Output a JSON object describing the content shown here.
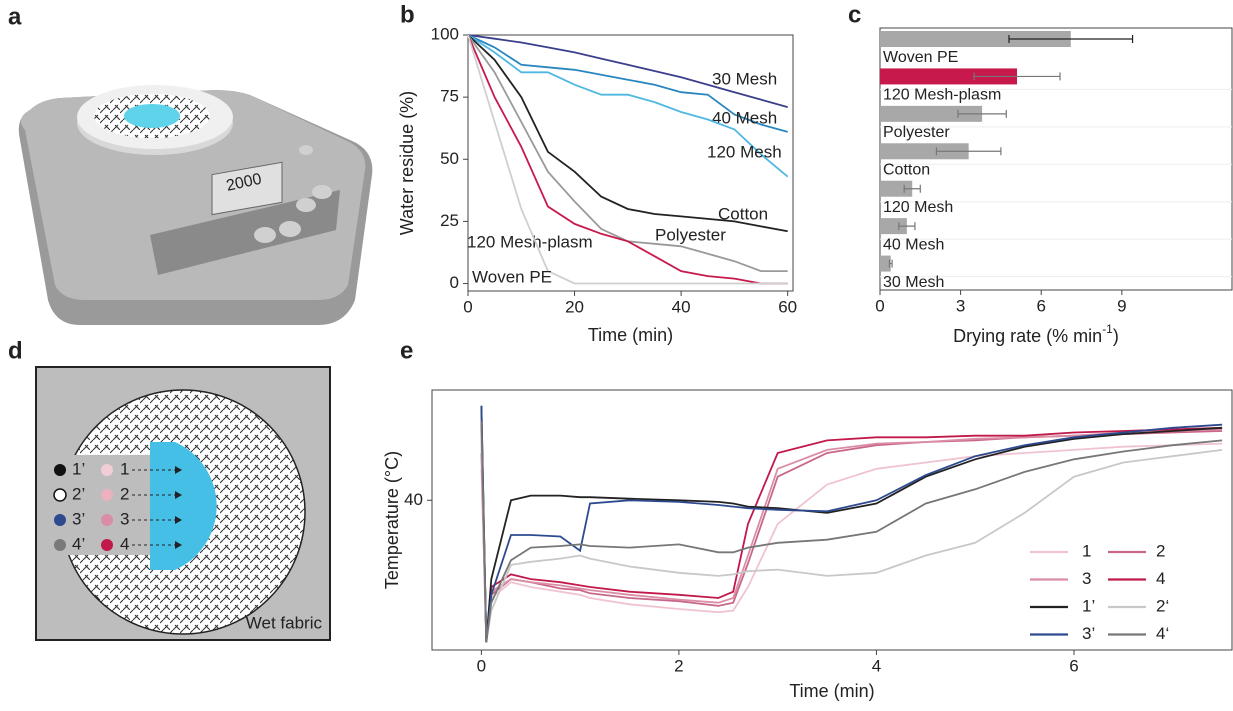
{
  "panel_labels": [
    "a",
    "b",
    "c",
    "d",
    "e"
  ],
  "scale_display": "2000",
  "diagram": {
    "labels_left": [
      "1’",
      "2’",
      "3’",
      "4’"
    ],
    "labels_right": [
      "1",
      "2",
      "3",
      "4"
    ],
    "note": "Wet fabric"
  },
  "chart_data": [
    {
      "type": "line",
      "xlabel": "Time (min)",
      "ylabel": "Water residue (%)",
      "x": [
        0,
        5,
        10,
        15,
        20,
        25,
        30,
        35,
        40,
        45,
        50,
        55,
        60
      ],
      "xlim": [
        0,
        61
      ],
      "ylim": [
        -3,
        100
      ],
      "xticks": [
        0,
        20,
        40,
        60
      ],
      "yticks": [
        0,
        25,
        50,
        75,
        100
      ],
      "series": [
        {
          "name": "30 Mesh",
          "color": "#3b3f8c",
          "values": [
            100,
            98.5,
            97,
            95,
            93,
            90.5,
            88,
            85.5,
            83,
            80,
            77,
            74,
            71
          ]
        },
        {
          "name": "40 Mesh",
          "color": "#2a86be",
          "values": [
            100,
            95,
            88,
            87,
            86,
            84,
            82,
            80,
            77,
            76,
            68,
            64,
            61
          ]
        },
        {
          "name": "120 Mesh",
          "color": "#4fb8e2",
          "values": [
            100,
            93,
            85,
            85,
            80,
            76,
            76,
            73,
            69,
            66,
            62,
            52,
            43
          ]
        },
        {
          "name": "Cotton",
          "color": "#222222",
          "values": [
            100,
            90,
            75,
            53,
            45,
            35,
            30,
            28,
            27,
            26,
            25,
            23,
            21
          ]
        },
        {
          "name": "Polyester",
          "color": "#9a9a9a",
          "values": [
            100,
            85,
            65,
            45,
            33,
            22,
            17,
            16,
            15,
            12,
            9,
            5,
            5
          ]
        },
        {
          "name": "120 Mesh-plasm",
          "color": "#c8194c",
          "values": [
            100,
            75,
            55,
            31,
            24,
            20,
            17,
            11,
            5,
            3,
            2,
            0,
            0
          ]
        },
        {
          "name": "Woven PE",
          "color": "#cfcfcf",
          "values": [
            100,
            65,
            30,
            5,
            0,
            0,
            0,
            0,
            0,
            0,
            0,
            0,
            0
          ]
        }
      ]
    },
    {
      "type": "hbar",
      "xlabel": [
        "Drying rate (% min",
        "-1",
        ")"
      ],
      "categories": [
        "Woven PE",
        "120 Mesh-plasm",
        "Polyester",
        "Cotton",
        "120 Mesh",
        "40 Mesh",
        "30 Mesh"
      ],
      "values": [
        7.1,
        5.1,
        3.8,
        3.3,
        1.2,
        1.0,
        0.4
      ],
      "errors": [
        2.3,
        1.6,
        0.9,
        1.2,
        0.3,
        0.3,
        0.05
      ],
      "colors": [
        "#a8a8a8",
        "#c8194c",
        "#a8a8a8",
        "#a8a8a8",
        "#a8a8a8",
        "#a8a8a8",
        "#a8a8a8"
      ],
      "xlim": [
        0,
        13.1
      ],
      "xticks": [
        0,
        3,
        6,
        9
      ]
    },
    {
      "type": "line",
      "xlabel": "Time (min)",
      "ylabel": "Temperature (°C)",
      "legend": "lower right",
      "x": [
        0,
        0.05,
        0.1,
        0.3,
        0.5,
        0.8,
        1.0,
        1.1,
        1.5,
        2.0,
        2.4,
        2.55,
        2.7,
        3.0,
        3.5,
        4.0,
        4.5,
        5.0,
        5.5,
        6.0,
        6.5,
        7.0,
        7.5
      ],
      "xlim": [
        -0.5,
        7.6
      ],
      "ylim": [
        30.5,
        47
      ],
      "xticks": [
        0,
        2,
        4,
        6
      ],
      "yticks": [
        40
      ],
      "series": [
        {
          "name": "1",
          "color": "#f0c4cf",
          "values": [
            42,
            31,
            33.8,
            34.8,
            34.5,
            34.2,
            34.0,
            33.8,
            33.4,
            33.1,
            32.9,
            33.0,
            34.5,
            38.5,
            41.0,
            42.0,
            42.4,
            42.8,
            43.0,
            43.2,
            43.4,
            43.5,
            43.6
          ]
        },
        {
          "name": "2",
          "color": "#c9678a",
          "values": [
            43,
            31,
            34.0,
            35.0,
            34.8,
            34.4,
            34.3,
            34.1,
            33.8,
            33.6,
            33.3,
            33.5,
            36,
            41.5,
            43.0,
            43.5,
            43.7,
            43.8,
            44.0,
            44.1,
            44.2,
            44.3,
            44.4
          ]
        },
        {
          "name": "3",
          "color": "#d98ea5",
          "values": [
            44,
            31,
            34.2,
            35.0,
            34.8,
            34.6,
            34.4,
            34.3,
            34.0,
            33.7,
            33.5,
            33.8,
            36.5,
            42.0,
            43.2,
            43.6,
            43.7,
            43.9,
            44.0,
            44.1,
            44.3,
            44.4,
            44.5
          ]
        },
        {
          "name": "4",
          "color": "#c0194a",
          "values": [
            45,
            31,
            34.5,
            35.3,
            35.0,
            34.8,
            34.6,
            34.5,
            34.2,
            34.0,
            33.8,
            34.2,
            38.5,
            43.0,
            43.8,
            44.0,
            44.0,
            44.1,
            44.1,
            44.3,
            44.4,
            44.5,
            44.6
          ]
        },
        {
          "name": "1’",
          "color": "#222222",
          "values": [
            46,
            31,
            35,
            40.0,
            40.3,
            40.3,
            40.2,
            40.2,
            40.1,
            40.0,
            39.9,
            39.8,
            39.6,
            39.5,
            39.2,
            39.8,
            41.5,
            42.6,
            43.4,
            43.9,
            44.2,
            44.4,
            44.6
          ]
        },
        {
          "name": "2‘",
          "color": "#c8c8c8",
          "values": [
            44,
            31,
            33,
            35.9,
            36.1,
            36.3,
            36.5,
            36.3,
            35.8,
            35.4,
            35.2,
            35.3,
            35.5,
            35.6,
            35.2,
            35.4,
            36.5,
            37.3,
            39.2,
            41.5,
            42.4,
            42.8,
            43.2
          ]
        },
        {
          "name": "3’",
          "color": "#2e4a8f",
          "values": [
            46,
            31,
            34,
            37.8,
            37.8,
            37.7,
            36.8,
            39.8,
            40.0,
            39.9,
            39.7,
            39.6,
            39.5,
            39.4,
            39.3,
            40.0,
            41.6,
            42.8,
            43.5,
            44.0,
            44.3,
            44.6,
            44.8
          ]
        },
        {
          "name": "4‘",
          "color": "#777777",
          "values": [
            45,
            31,
            33.5,
            36.2,
            37.0,
            37.1,
            37.2,
            37.1,
            37.0,
            37.2,
            36.7,
            36.7,
            37.0,
            37.3,
            37.5,
            38.0,
            39.8,
            40.7,
            41.8,
            42.6,
            43.1,
            43.5,
            43.8
          ]
        }
      ]
    }
  ]
}
